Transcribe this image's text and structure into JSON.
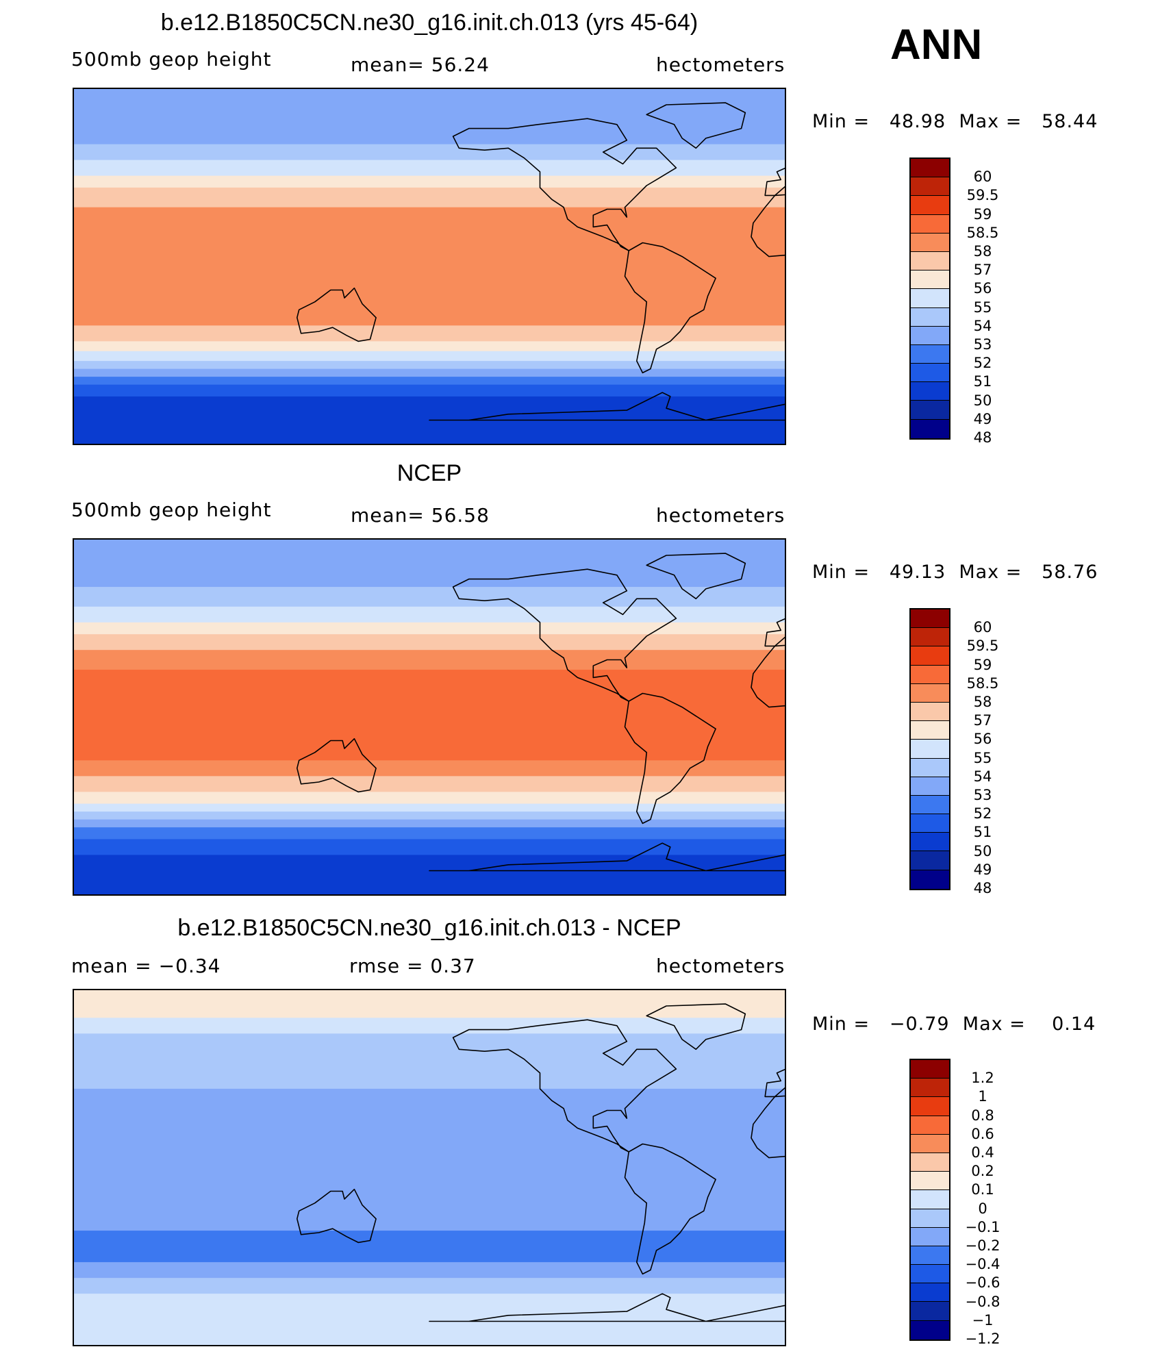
{
  "ann_label": "ANN",
  "colors": {
    "abs_palette": [
      "#00008a",
      "#0a28a0",
      "#0a3cd0",
      "#1e5ae6",
      "#3c78f0",
      "#82a8f8",
      "#aac8fa",
      "#d2e4fc",
      "#fae8d6",
      "#fac8aa",
      "#f88c5a",
      "#f86a38",
      "#e83c10",
      "#be2408",
      "#8c0000"
    ],
    "diff_palette": [
      "#00008a",
      "#0a28a0",
      "#0a3cd0",
      "#1e5ae6",
      "#3c78f0",
      "#82a8f8",
      "#aac8fa",
      "#d2e4fc",
      "#fae8d6",
      "#fac8aa",
      "#f88c5a",
      "#f86a38",
      "#e83c10",
      "#be2408",
      "#8c0000"
    ]
  },
  "chart_data": [
    {
      "type": "heatmap",
      "title": "b.e12.B1850C5CN.ne30_g16.init.ch.013 (yrs 45-64)",
      "left_label": "500mb  geop  height",
      "mean_text": "mean=   56.24",
      "units": "hectometers",
      "min_max_text": "Min =   48.98  Max =   58.44",
      "min": 48.98,
      "max": 58.44,
      "colorbar_ticks": [
        "60",
        "59.5",
        "59",
        "58.5",
        "58",
        "57",
        "56",
        "55",
        "54",
        "53",
        "52",
        "51",
        "50",
        "49",
        "48"
      ],
      "zonal_bands": [
        {
          "lat": 90,
          "level": 5
        },
        {
          "lat": 75,
          "level": 5
        },
        {
          "lat": 62,
          "level": 6
        },
        {
          "lat": 54,
          "level": 7
        },
        {
          "lat": 46,
          "level": 8
        },
        {
          "lat": 40,
          "level": 9
        },
        {
          "lat": 30,
          "level": 10
        },
        {
          "lat": -25,
          "level": 10
        },
        {
          "lat": -30,
          "level": 9
        },
        {
          "lat": -38,
          "level": 8
        },
        {
          "lat": -43,
          "level": 7
        },
        {
          "lat": -48,
          "level": 6
        },
        {
          "lat": -52,
          "level": 5
        },
        {
          "lat": -56,
          "level": 4
        },
        {
          "lat": -60,
          "level": 3
        },
        {
          "lat": -66,
          "level": 2
        },
        {
          "lat": -90,
          "level": 2
        }
      ]
    },
    {
      "type": "heatmap",
      "title": "NCEP",
      "left_label": "500mb  geop  height",
      "mean_text": "mean=   56.58",
      "units": "hectometers",
      "min_max_text": "Min =   49.13  Max =   58.76",
      "min": 49.13,
      "max": 58.76,
      "colorbar_ticks": [
        "60",
        "59.5",
        "59",
        "58.5",
        "58",
        "57",
        "56",
        "55",
        "54",
        "53",
        "52",
        "51",
        "50",
        "49",
        "48"
      ],
      "zonal_bands": [
        {
          "lat": 90,
          "level": 5
        },
        {
          "lat": 76,
          "level": 5
        },
        {
          "lat": 66,
          "level": 6
        },
        {
          "lat": 56,
          "level": 7
        },
        {
          "lat": 48,
          "level": 8
        },
        {
          "lat": 42,
          "level": 9
        },
        {
          "lat": 34,
          "level": 10
        },
        {
          "lat": 24,
          "level": 11
        },
        {
          "lat": -14,
          "level": 11
        },
        {
          "lat": -22,
          "level": 10
        },
        {
          "lat": -30,
          "level": 9
        },
        {
          "lat": -38,
          "level": 8
        },
        {
          "lat": -44,
          "level": 7
        },
        {
          "lat": -48,
          "level": 6
        },
        {
          "lat": -52,
          "level": 5
        },
        {
          "lat": -56,
          "level": 4
        },
        {
          "lat": -62,
          "level": 3
        },
        {
          "lat": -70,
          "level": 2
        },
        {
          "lat": -90,
          "level": 2
        }
      ]
    },
    {
      "type": "heatmap",
      "title": "b.e12.B1850C5CN.ne30_g16.init.ch.013 - NCEP",
      "left_label": "mean =   −0.34",
      "mean_text": "rmse =    0.37",
      "units": "hectometers",
      "min_max_text": "Min =   −0.79  Max =    0.14",
      "min": -0.79,
      "max": 0.14,
      "colorbar_ticks": [
        "1.2",
        "1",
        "0.8",
        "0.6",
        "0.4",
        "0.2",
        "0.1",
        "0",
        "−0.1",
        "−0.2",
        "−0.4",
        "−0.6",
        "−0.8",
        "−1",
        "−1.2"
      ],
      "zonal_bands": [
        {
          "lat": 90,
          "level": 8
        },
        {
          "lat": 82,
          "level": 8
        },
        {
          "lat": 76,
          "level": 7
        },
        {
          "lat": 68,
          "level": 6
        },
        {
          "lat": 40,
          "level": 5
        },
        {
          "lat": 20,
          "level": 5
        },
        {
          "lat": -20,
          "level": 5
        },
        {
          "lat": -32,
          "level": 4
        },
        {
          "lat": -42,
          "level": 4
        },
        {
          "lat": -48,
          "level": 5
        },
        {
          "lat": -56,
          "level": 6
        },
        {
          "lat": -64,
          "level": 7
        },
        {
          "lat": -90,
          "level": 6
        }
      ]
    }
  ]
}
